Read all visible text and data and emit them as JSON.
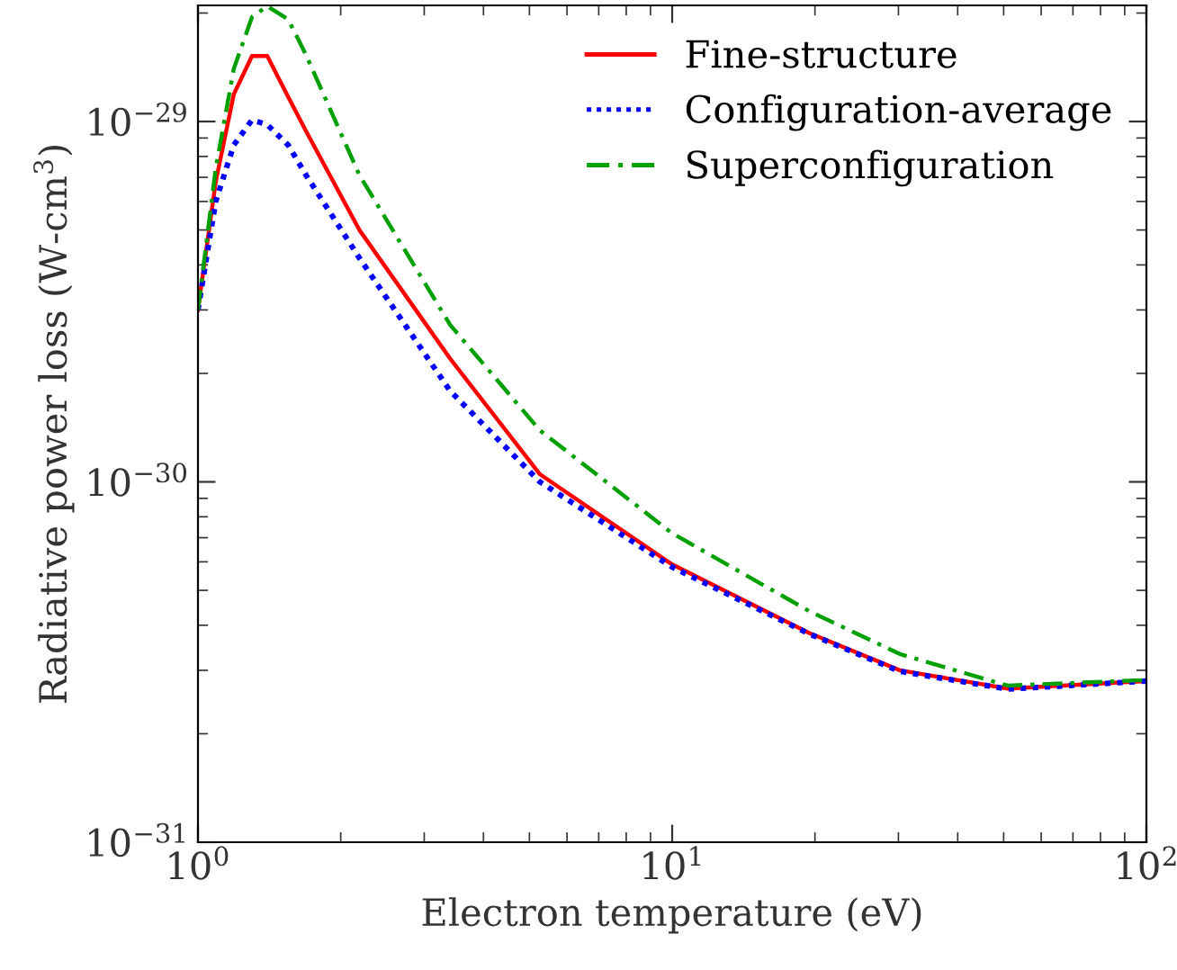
{
  "chart_data": {
    "type": "line",
    "xlabel": "Electron temperature (eV)",
    "ylabel": "Radiative power loss (W-cm$^{3}$)",
    "log": "xy",
    "xlim": [
      1,
      100
    ],
    "ylim": [
      1e-31,
      2.1e-29
    ],
    "xticks": [
      {
        "value": 1,
        "label": "10$^{0}$"
      },
      {
        "value": 10,
        "label": "10$^{1}$"
      },
      {
        "value": 100,
        "label": "10$^{2}$"
      }
    ],
    "yticks": [
      {
        "value": 1e-31,
        "label": "10$^{−31}$"
      },
      {
        "value": 1e-30,
        "label": "10$^{−30}$"
      },
      {
        "value": 1e-29,
        "label": "10$^{−29}$"
      }
    ],
    "x": [
      1,
      1.09,
      1.19,
      1.3,
      1.4,
      1.55,
      1.69,
      2.19,
      3.4,
      5.26,
      10,
      19.5,
      30.2,
      51,
      100
    ],
    "grid": false,
    "legend": "top right",
    "series": [
      {
        "name": "Fine-structure",
        "color": "#ff0000",
        "line_style": "solid",
        "values": [
          3e-30,
          6.8e-30,
          1.19e-29,
          1.52e-29,
          1.52e-29,
          1.17e-29,
          9.4e-30,
          5e-30,
          2.2e-30,
          1.05e-30,
          5.9e-31,
          3.8e-31,
          3e-31,
          2.67e-31,
          2.8e-31
        ]
      },
      {
        "name": "Configuration-average",
        "color": "#0000ff",
        "line_style": "dotted",
        "values": [
          3e-30,
          6e-30,
          8.6e-30,
          1.01e-29,
          9.8e-30,
          8.6e-30,
          7.1e-30,
          4.18e-30,
          1.79e-30,
          1e-30,
          5.8e-31,
          3.78e-31,
          2.98e-31,
          2.66e-31,
          2.8e-31
        ]
      },
      {
        "name": "Superconfiguration",
        "color": "#00a000",
        "line_style": "dashed",
        "values": [
          3e-30,
          7.4e-30,
          1.4e-29,
          1.95e-29,
          2.09e-29,
          1.92e-29,
          1.53e-29,
          7.1e-30,
          2.73e-30,
          1.39e-30,
          7.2e-31,
          4.37e-31,
          3.33e-31,
          2.72e-31,
          2.82e-31
        ]
      }
    ]
  }
}
